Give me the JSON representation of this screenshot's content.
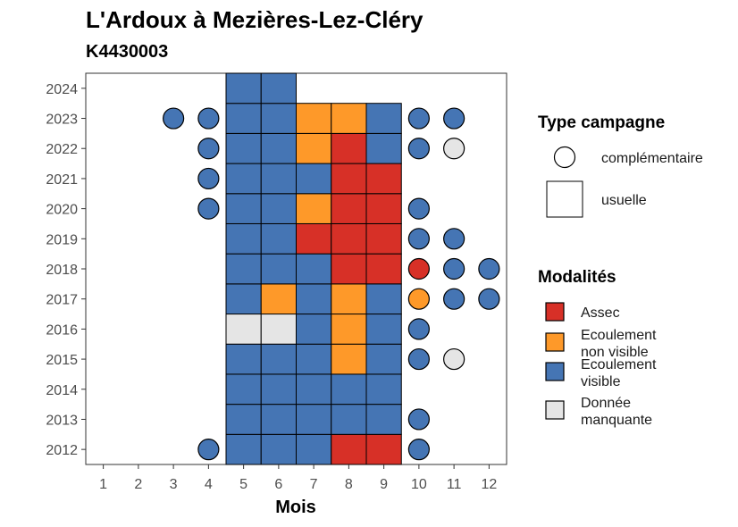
{
  "chart_data": {
    "type": "heatmap",
    "title": "L'Ardoux à Mezières-Lez-Cléry",
    "subtitle": "K4430003",
    "xlabel": "Mois",
    "ylabel": "",
    "x_ticks": [
      1,
      2,
      3,
      4,
      5,
      6,
      7,
      8,
      9,
      10,
      11,
      12
    ],
    "y_ticks": [
      2012,
      2013,
      2014,
      2015,
      2016,
      2017,
      2018,
      2019,
      2020,
      2021,
      2022,
      2023,
      2024
    ],
    "xlim": [
      0.5,
      12.5
    ],
    "ylim": [
      2011.5,
      2024.5
    ],
    "legend_shape_title": "Type campagne",
    "legend_shape_items": [
      {
        "label": "complémentaire",
        "shape": "circle"
      },
      {
        "label": "usuelle",
        "shape": "square"
      }
    ],
    "legend_color_title": "Modalités",
    "legend_color_items": [
      {
        "key": "assec",
        "lines": [
          "Assec"
        ],
        "color": "#d73027"
      },
      {
        "key": "nonvisible",
        "lines": [
          "Ecoulement",
          "non visible"
        ],
        "color": "#fe9929"
      },
      {
        "key": "visible",
        "lines": [
          "Ecoulement",
          "visible"
        ],
        "color": "#4575b4"
      },
      {
        "key": "manquante",
        "lines": [
          "Donnée",
          "manquante"
        ],
        "color": "#e5e5e5"
      }
    ],
    "usuelle": [
      {
        "year": 2012,
        "months": [
          5,
          6,
          7,
          8,
          9
        ],
        "values": [
          "visible",
          "visible",
          "visible",
          "assec",
          "assec"
        ]
      },
      {
        "year": 2013,
        "months": [
          5,
          6,
          7,
          8,
          9
        ],
        "values": [
          "visible",
          "visible",
          "visible",
          "visible",
          "visible"
        ]
      },
      {
        "year": 2014,
        "months": [
          5,
          6,
          7,
          8,
          9
        ],
        "values": [
          "visible",
          "visible",
          "visible",
          "visible",
          "visible"
        ]
      },
      {
        "year": 2015,
        "months": [
          5,
          6,
          7,
          8,
          9
        ],
        "values": [
          "visible",
          "visible",
          "visible",
          "nonvisible",
          "visible"
        ]
      },
      {
        "year": 2016,
        "months": [
          5,
          6,
          7,
          8,
          9
        ],
        "values": [
          "manquante",
          "manquante",
          "visible",
          "nonvisible",
          "visible"
        ]
      },
      {
        "year": 2017,
        "months": [
          5,
          6,
          7,
          8,
          9
        ],
        "values": [
          "visible",
          "nonvisible",
          "visible",
          "nonvisible",
          "visible"
        ]
      },
      {
        "year": 2018,
        "months": [
          5,
          6,
          7,
          8,
          9
        ],
        "values": [
          "visible",
          "visible",
          "visible",
          "assec",
          "assec"
        ]
      },
      {
        "year": 2019,
        "months": [
          5,
          6,
          7,
          8,
          9
        ],
        "values": [
          "visible",
          "visible",
          "assec",
          "assec",
          "assec"
        ]
      },
      {
        "year": 2020,
        "months": [
          5,
          6,
          7,
          8,
          9
        ],
        "values": [
          "visible",
          "visible",
          "nonvisible",
          "assec",
          "assec"
        ]
      },
      {
        "year": 2021,
        "months": [
          5,
          6,
          7,
          8,
          9
        ],
        "values": [
          "visible",
          "visible",
          "visible",
          "assec",
          "assec"
        ]
      },
      {
        "year": 2022,
        "months": [
          5,
          6,
          7,
          8,
          9
        ],
        "values": [
          "visible",
          "visible",
          "nonvisible",
          "assec",
          "visible"
        ]
      },
      {
        "year": 2023,
        "months": [
          5,
          6,
          7,
          8,
          9
        ],
        "values": [
          "visible",
          "visible",
          "nonvisible",
          "nonvisible",
          "visible"
        ]
      },
      {
        "year": 2024,
        "months": [
          5,
          6
        ],
        "values": [
          "visible",
          "visible"
        ]
      }
    ],
    "complementaire": [
      {
        "year": 2012,
        "month": 4,
        "value": "visible"
      },
      {
        "year": 2012,
        "month": 10,
        "value": "visible"
      },
      {
        "year": 2013,
        "month": 10,
        "value": "visible"
      },
      {
        "year": 2015,
        "month": 10,
        "value": "visible"
      },
      {
        "year": 2015,
        "month": 11,
        "value": "manquante"
      },
      {
        "year": 2016,
        "month": 10,
        "value": "visible"
      },
      {
        "year": 2017,
        "month": 10,
        "value": "nonvisible"
      },
      {
        "year": 2017,
        "month": 11,
        "value": "visible"
      },
      {
        "year": 2017,
        "month": 12,
        "value": "visible"
      },
      {
        "year": 2018,
        "month": 10,
        "value": "assec"
      },
      {
        "year": 2018,
        "month": 11,
        "value": "visible"
      },
      {
        "year": 2018,
        "month": 12,
        "value": "visible"
      },
      {
        "year": 2019,
        "month": 10,
        "value": "visible"
      },
      {
        "year": 2019,
        "month": 11,
        "value": "visible"
      },
      {
        "year": 2020,
        "month": 4,
        "value": "visible"
      },
      {
        "year": 2020,
        "month": 10,
        "value": "visible"
      },
      {
        "year": 2021,
        "month": 4,
        "value": "visible"
      },
      {
        "year": 2022,
        "month": 4,
        "value": "visible"
      },
      {
        "year": 2022,
        "month": 10,
        "value": "visible"
      },
      {
        "year": 2022,
        "month": 11,
        "value": "manquante"
      },
      {
        "year": 2023,
        "month": 3,
        "value": "visible"
      },
      {
        "year": 2023,
        "month": 4,
        "value": "visible"
      },
      {
        "year": 2023,
        "month": 10,
        "value": "visible"
      },
      {
        "year": 2023,
        "month": 11,
        "value": "visible"
      }
    ]
  }
}
